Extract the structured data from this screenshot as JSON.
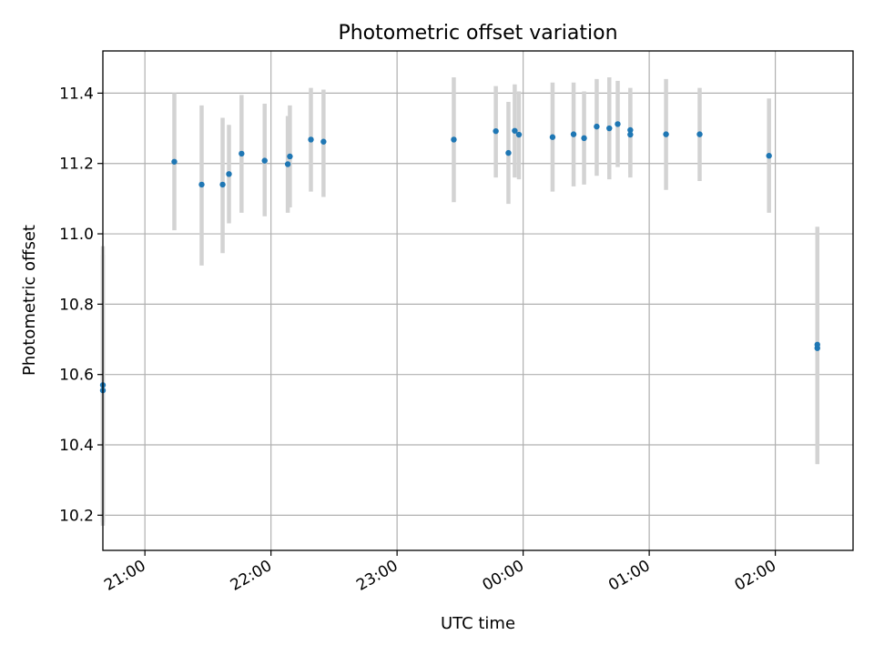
{
  "chart_data": {
    "type": "scatter",
    "title": "Photometric offset variation",
    "xlabel": "UTC time",
    "ylabel": "Photometric offset",
    "grid": true,
    "xlim": [
      "20:40",
      "02:37"
    ],
    "ylim": [
      10.1,
      11.52
    ],
    "x_ticks": [
      "21:00",
      "22:00",
      "23:00",
      "00:00",
      "01:00",
      "02:00"
    ],
    "y_ticks": [
      10.2,
      10.4,
      10.6,
      10.8,
      11.0,
      11.2,
      11.4
    ],
    "colors": {
      "points": "#1f77b4",
      "errorbars": "#d3d3d3",
      "grid": "#b0b0b0"
    },
    "points": [
      {
        "x": "20:40",
        "y": 10.555,
        "err_low": 10.18,
        "err_high": 10.94
      },
      {
        "x": "20:40",
        "y": 10.57,
        "err_low": 10.17,
        "err_high": 10.965
      },
      {
        "x": "21:14",
        "y": 11.205,
        "err_low": 11.01,
        "err_high": 11.4
      },
      {
        "x": "21:27",
        "y": 11.14,
        "err_low": 10.91,
        "err_high": 11.365
      },
      {
        "x": "21:37",
        "y": 11.14,
        "err_low": 10.945,
        "err_high": 11.33
      },
      {
        "x": "21:40",
        "y": 11.17,
        "err_low": 11.03,
        "err_high": 11.31
      },
      {
        "x": "21:46",
        "y": 11.228,
        "err_low": 11.06,
        "err_high": 11.395
      },
      {
        "x": "21:57",
        "y": 11.208,
        "err_low": 11.05,
        "err_high": 11.37
      },
      {
        "x": "22:08",
        "y": 11.198,
        "err_low": 11.06,
        "err_high": 11.335
      },
      {
        "x": "22:09",
        "y": 11.22,
        "err_low": 11.075,
        "err_high": 11.365
      },
      {
        "x": "22:19",
        "y": 11.268,
        "err_low": 11.12,
        "err_high": 11.415
      },
      {
        "x": "22:25",
        "y": 11.262,
        "err_low": 11.105,
        "err_high": 11.41
      },
      {
        "x": "23:27",
        "y": 11.268,
        "err_low": 11.09,
        "err_high": 11.445
      },
      {
        "x": "23:47",
        "y": 11.292,
        "err_low": 11.16,
        "err_high": 11.42
      },
      {
        "x": "23:53",
        "y": 11.23,
        "err_low": 11.085,
        "err_high": 11.375
      },
      {
        "x": "23:56",
        "y": 11.293,
        "err_low": 11.16,
        "err_high": 11.425
      },
      {
        "x": "23:58",
        "y": 11.282,
        "err_low": 11.155,
        "err_high": 11.405
      },
      {
        "x": "00:14",
        "y": 11.275,
        "err_low": 11.12,
        "err_high": 11.43
      },
      {
        "x": "00:24",
        "y": 11.283,
        "err_low": 11.135,
        "err_high": 11.43
      },
      {
        "x": "00:29",
        "y": 11.272,
        "err_low": 11.14,
        "err_high": 11.405
      },
      {
        "x": "00:35",
        "y": 11.305,
        "err_low": 11.165,
        "err_high": 11.44
      },
      {
        "x": "00:41",
        "y": 11.3,
        "err_low": 11.155,
        "err_high": 11.445
      },
      {
        "x": "00:45",
        "y": 11.312,
        "err_low": 11.19,
        "err_high": 11.435
      },
      {
        "x": "00:51",
        "y": 11.295,
        "err_low": 11.16,
        "err_high": 11.415
      },
      {
        "x": "00:51",
        "y": 11.282,
        "err_low": 11.17,
        "err_high": 11.4
      },
      {
        "x": "01:08",
        "y": 11.283,
        "err_low": 11.125,
        "err_high": 11.44
      },
      {
        "x": "01:24",
        "y": 11.283,
        "err_low": 11.15,
        "err_high": 11.415
      },
      {
        "x": "01:57",
        "y": 11.222,
        "err_low": 11.06,
        "err_high": 11.385
      },
      {
        "x": "02:20",
        "y": 10.675,
        "err_low": 10.41,
        "err_high": 10.94
      },
      {
        "x": "02:20",
        "y": 10.685,
        "err_low": 10.345,
        "err_high": 11.02
      }
    ]
  }
}
